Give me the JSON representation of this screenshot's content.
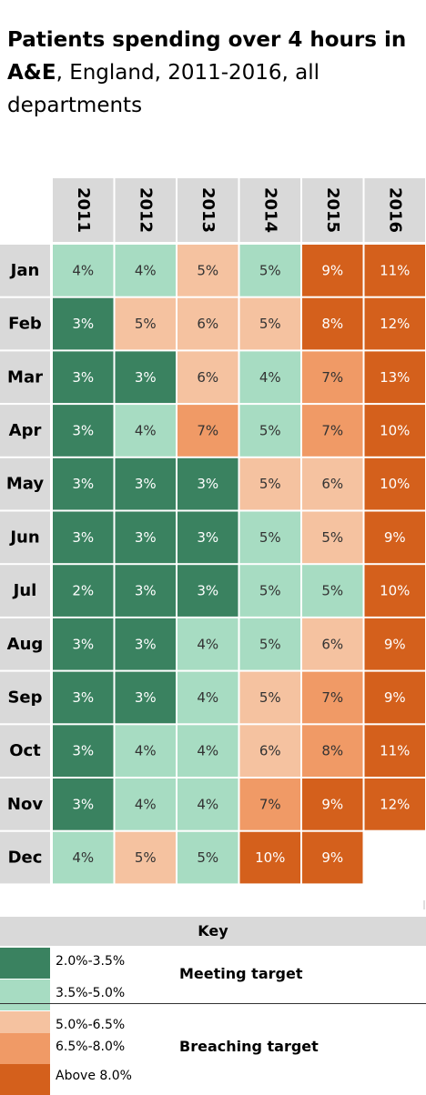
{
  "title": {
    "bold": "Patients spending over 4 hours in A&E",
    "rest": ", England, 2011-2016, all departments"
  },
  "chart_data": {
    "type": "heatmap",
    "title": "Patients spending over 4 hours in A&E, England, 2011-2016, all departments",
    "columns": [
      "2011",
      "2012",
      "2013",
      "2014",
      "2015",
      "2016"
    ],
    "rows": [
      "Jan",
      "Feb",
      "Mar",
      "Apr",
      "May",
      "Jun",
      "Jul",
      "Aug",
      "Sep",
      "Oct",
      "Nov",
      "Dec"
    ],
    "labels": [
      [
        "4%",
        "4%",
        "5%",
        "5%",
        "9%",
        "11%"
      ],
      [
        "3%",
        "5%",
        "6%",
        "5%",
        "8%",
        "12%"
      ],
      [
        "3%",
        "3%",
        "6%",
        "4%",
        "7%",
        "13%"
      ],
      [
        "3%",
        "4%",
        "7%",
        "5%",
        "7%",
        "10%"
      ],
      [
        "3%",
        "3%",
        "3%",
        "5%",
        "6%",
        "10%"
      ],
      [
        "3%",
        "3%",
        "3%",
        "5%",
        "5%",
        "9%"
      ],
      [
        "2%",
        "3%",
        "3%",
        "5%",
        "5%",
        "10%"
      ],
      [
        "3%",
        "3%",
        "4%",
        "5%",
        "6%",
        "9%"
      ],
      [
        "3%",
        "3%",
        "4%",
        "5%",
        "7%",
        "9%"
      ],
      [
        "3%",
        "4%",
        "4%",
        "6%",
        "8%",
        "11%"
      ],
      [
        "3%",
        "4%",
        "4%",
        "7%",
        "9%",
        "12%"
      ],
      [
        "4%",
        "5%",
        "5%",
        "10%",
        "9%",
        ""
      ]
    ],
    "bands": [
      [
        1,
        1,
        2,
        1,
        4,
        4
      ],
      [
        0,
        2,
        2,
        2,
        4,
        4
      ],
      [
        0,
        0,
        2,
        1,
        3,
        4
      ],
      [
        0,
        1,
        3,
        1,
        3,
        4
      ],
      [
        0,
        0,
        0,
        2,
        2,
        4
      ],
      [
        0,
        0,
        0,
        1,
        2,
        4
      ],
      [
        0,
        0,
        0,
        1,
        1,
        4
      ],
      [
        0,
        0,
        1,
        1,
        2,
        4
      ],
      [
        0,
        0,
        1,
        2,
        3,
        4
      ],
      [
        0,
        1,
        1,
        2,
        3,
        4
      ],
      [
        0,
        1,
        1,
        3,
        4,
        4
      ],
      [
        1,
        2,
        1,
        4,
        4,
        null
      ]
    ],
    "band_colors": [
      "#3a8260",
      "#a7dcc2",
      "#f5c2a0",
      "#f09a66",
      "#d4601c"
    ],
    "header_color": "#d9d9d9",
    "legend_placement": "bottom"
  },
  "key": {
    "header": "Key",
    "items": [
      {
        "range": "2.0%-3.5%",
        "color": "#3a8260"
      },
      {
        "range": "3.5%-5.0%",
        "color": "#a7dcc2"
      },
      {
        "range": "5.0%-6.5%",
        "color": "#f5c2a0"
      },
      {
        "range": "6.5%-8.0%",
        "color": "#f09a66"
      },
      {
        "range": "Above 8.0%",
        "color": "#d4601c"
      }
    ],
    "groups": [
      "Meeting target",
      "Breaching target"
    ]
  }
}
